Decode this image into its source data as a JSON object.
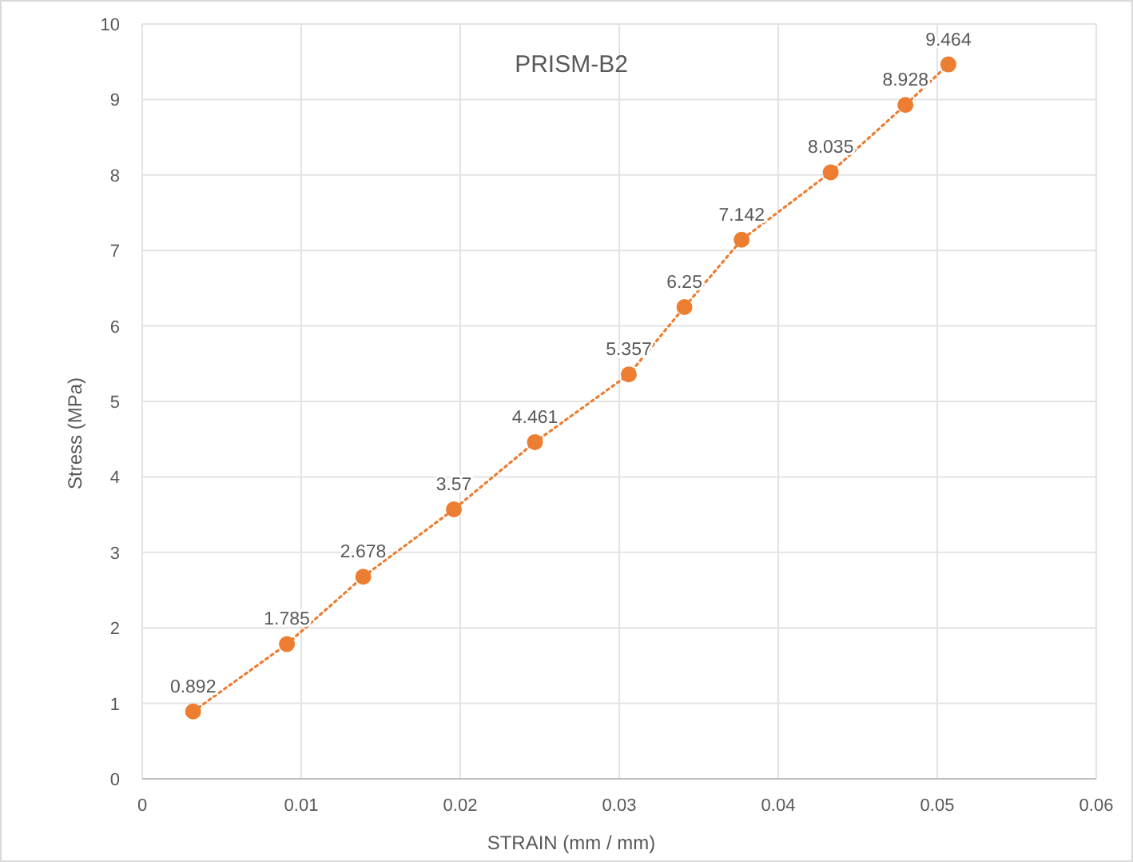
{
  "chart_data": {
    "type": "line",
    "title": "PRISM-B2",
    "xlabel": "STRAIN (mm / mm)",
    "ylabel": "Stress (MPa)",
    "x": [
      0.0032,
      0.0091,
      0.0139,
      0.0196,
      0.0247,
      0.0306,
      0.0341,
      0.0377,
      0.0433,
      0.048,
      0.0507
    ],
    "series": [
      {
        "color": "#ed7d31",
        "values": [
          0.892,
          1.785,
          2.678,
          3.57,
          4.461,
          5.357,
          6.25,
          7.142,
          8.035,
          8.928,
          9.464
        ]
      }
    ],
    "xlim": [
      0,
      0.06
    ],
    "xticks": [
      {
        "value": 0,
        "label": "0"
      },
      0.01,
      0.02,
      0.03,
      0.04,
      0.05,
      0.06
    ],
    "ylim": [
      0,
      10
    ],
    "yticks": [
      0,
      1,
      2,
      3,
      4,
      5,
      6,
      7,
      8,
      9,
      10
    ],
    "grid": true,
    "marker": "circle",
    "line_style": "dotted",
    "data_labels": true
  }
}
